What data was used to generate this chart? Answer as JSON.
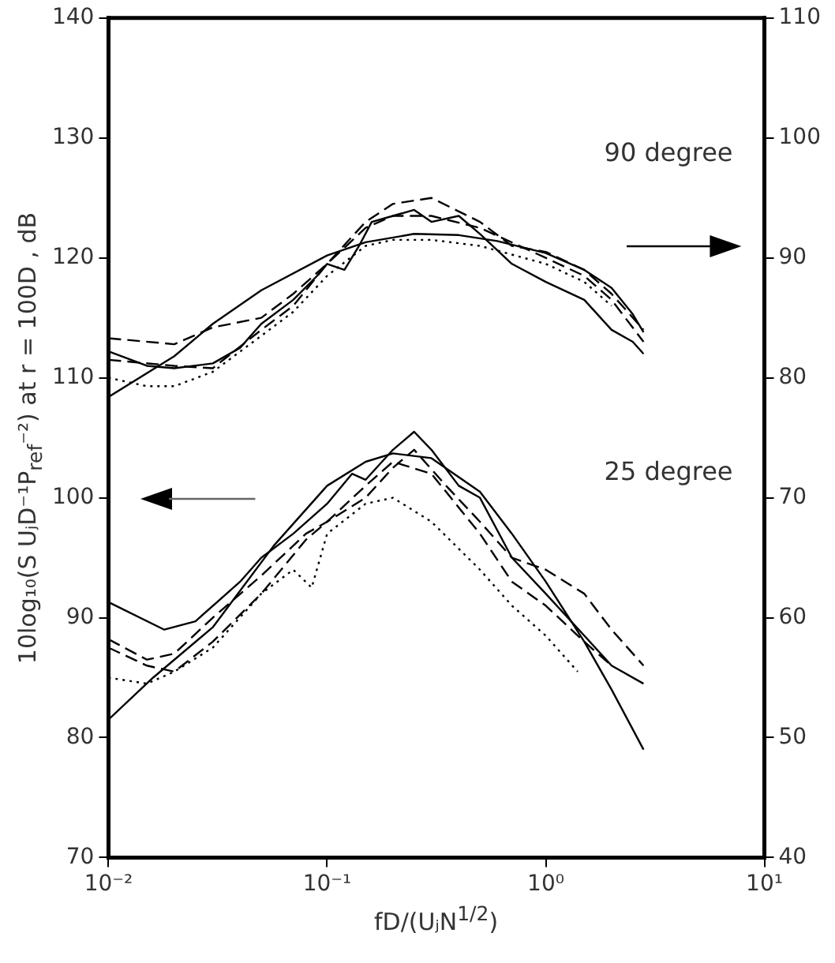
{
  "chart_data": {
    "type": "line",
    "xlabel": "fD/(UⱼN$^{1/2}$)",
    "ylabel": "10log₁₀(S UⱼD⁻¹P$_{ref}$⁻²)  at r = 100D , dB",
    "annotations": [
      "90 degree",
      "25 degree"
    ],
    "log": "x",
    "grid": false,
    "legend": false,
    "marker": "none",
    "xlim": [
      0.01,
      10
    ],
    "xticks": [
      {
        "value": 0.01,
        "label": "10⁻²"
      },
      {
        "value": 0.1,
        "label": "10⁻¹"
      },
      {
        "value": 1,
        "label": "10⁰"
      },
      {
        "value": 10,
        "label": "10¹"
      }
    ],
    "ylim": [
      70,
      140
    ],
    "yticks": [
      70,
      80,
      90,
      100,
      110,
      120,
      130,
      140
    ],
    "y2lim": [
      40,
      110
    ],
    "y2ticks": [
      40,
      50,
      60,
      70,
      80,
      90,
      100,
      110
    ],
    "series": [
      {
        "color": "#000000",
        "axis": "y2",
        "line_style": "solid",
        "x": [
          0.01,
          0.02,
          0.03,
          0.05,
          0.1,
          0.15,
          0.25,
          0.4,
          0.6,
          1,
          1.5,
          2,
          2.5,
          2.8
        ],
        "values": [
          78.4,
          81.8,
          84.5,
          87.3,
          90.2,
          91.3,
          92,
          91.9,
          91.4,
          90.4,
          89,
          87.5,
          85.3,
          83.8
        ]
      },
      {
        "color": "#000000",
        "axis": "y2",
        "line_style": "solid",
        "x": [
          0.01,
          0.015,
          0.02,
          0.03,
          0.04,
          0.05,
          0.07,
          0.09,
          0.1,
          0.12,
          0.14,
          0.16,
          0.2,
          0.25,
          0.3,
          0.4,
          0.5,
          0.7,
          1,
          1.5,
          2,
          2.5,
          2.8
        ],
        "values": [
          82.2,
          81,
          80.8,
          81.2,
          82.5,
          84.5,
          86.5,
          88.5,
          89.5,
          89,
          91,
          93,
          93.5,
          94,
          93,
          93.5,
          92,
          89.5,
          88,
          86.5,
          84,
          83,
          82
        ]
      },
      {
        "color": "#000000",
        "axis": "y2",
        "line_style": "dashed",
        "x": [
          0.01,
          0.02,
          0.03,
          0.05,
          0.07,
          0.1,
          0.15,
          0.2,
          0.3,
          0.5,
          0.7,
          1,
          1.5,
          2,
          2.8
        ],
        "values": [
          83.3,
          82.8,
          84.2,
          85,
          87,
          89.5,
          93,
          94.5,
          95,
          93,
          91,
          90.5,
          89,
          87,
          84
        ]
      },
      {
        "color": "#000000",
        "axis": "y2",
        "line_style": "dashed",
        "x": [
          0.01,
          0.02,
          0.03,
          0.05,
          0.07,
          0.1,
          0.15,
          0.2,
          0.3,
          0.5,
          1,
          1.5,
          2,
          2.8
        ],
        "values": [
          81.5,
          81,
          80.8,
          84,
          86,
          89.5,
          92.5,
          93.5,
          93.5,
          92.5,
          90,
          88.5,
          86.5,
          83
        ]
      },
      {
        "color": "#000000",
        "axis": "y2",
        "line_style": "dotted",
        "x": [
          0.01,
          0.015,
          0.02,
          0.03,
          0.05,
          0.07,
          0.1,
          0.15,
          0.2,
          0.3,
          0.5,
          1,
          1.5,
          2
        ],
        "values": [
          80,
          79.3,
          79.3,
          80.5,
          83.5,
          85.5,
          88.5,
          91,
          91.5,
          91.5,
          91,
          89.5,
          88,
          86
        ]
      },
      {
        "color": "#000000",
        "axis": "y",
        "line_style": "solid",
        "x": [
          0.01,
          0.016,
          0.03,
          0.057,
          0.1,
          0.15,
          0.2,
          0.3,
          0.5,
          0.7,
          1,
          1.5,
          2,
          2.8
        ],
        "values": [
          81.5,
          85,
          89.2,
          96,
          101,
          103,
          103.7,
          103.3,
          100.5,
          97,
          93,
          88,
          84,
          79
        ]
      },
      {
        "color": "#000000",
        "axis": "y",
        "line_style": "solid",
        "x": [
          0.01,
          0.018,
          0.025,
          0.04,
          0.05,
          0.07,
          0.1,
          0.13,
          0.15,
          0.2,
          0.25,
          0.3,
          0.4,
          0.5,
          0.7,
          1,
          1.5,
          2,
          2.8
        ],
        "values": [
          91.3,
          89,
          89.7,
          93,
          95,
          97,
          99.5,
          102,
          101.5,
          104,
          105.5,
          104,
          101,
          100,
          95,
          92,
          88.5,
          86,
          84.5
        ]
      },
      {
        "color": "#000000",
        "axis": "y",
        "line_style": "dashed",
        "x": [
          0.01,
          0.015,
          0.02,
          0.03,
          0.05,
          0.08,
          0.1,
          0.15,
          0.2,
          0.25,
          0.35,
          0.5,
          0.7,
          1,
          1.5,
          2,
          2.8
        ],
        "values": [
          88.2,
          86.5,
          87,
          90,
          93.5,
          97,
          98,
          100,
          102.5,
          104,
          101,
          98,
          95,
          94,
          92,
          89,
          86
        ]
      },
      {
        "color": "#000000",
        "axis": "y",
        "line_style": "dashed",
        "x": [
          0.01,
          0.015,
          0.02,
          0.03,
          0.05,
          0.08,
          0.1,
          0.15,
          0.2,
          0.3,
          0.5,
          0.7,
          1,
          1.5,
          2
        ],
        "values": [
          87.5,
          86,
          85.5,
          88,
          92,
          96.5,
          98,
          101,
          103,
          102,
          97,
          93,
          91,
          88,
          86
        ]
      },
      {
        "color": "#000000",
        "axis": "y",
        "line_style": "dotted",
        "x": [
          0.01,
          0.015,
          0.02,
          0.03,
          0.05,
          0.07,
          0.085,
          0.1,
          0.15,
          0.2,
          0.3,
          0.5,
          0.7,
          1,
          1.4
        ],
        "values": [
          85,
          84.5,
          85.5,
          87.5,
          92,
          94,
          92.5,
          97,
          99.5,
          100,
          98,
          94,
          91,
          88.5,
          85.5
        ]
      }
    ]
  }
}
